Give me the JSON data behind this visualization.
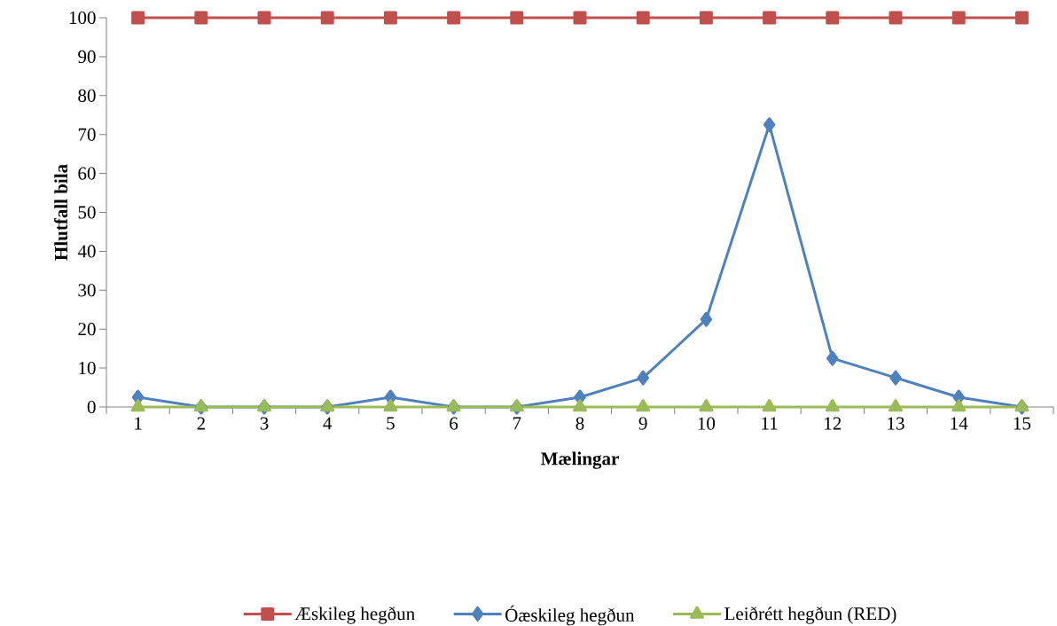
{
  "chart_data": {
    "type": "line",
    "xlabel": "Mælingar",
    "ylabel": "Hlutfall bila",
    "categories": [
      "1",
      "2",
      "3",
      "4",
      "5",
      "6",
      "7",
      "8",
      "9",
      "10",
      "11",
      "12",
      "13",
      "14",
      "15"
    ],
    "series": [
      {
        "name": "Æskileg hegðun",
        "color": "#c0504d",
        "marker": "square",
        "values": [
          100,
          100,
          100,
          100,
          100,
          100,
          100,
          100,
          100,
          100,
          100,
          100,
          100,
          100,
          100
        ]
      },
      {
        "name": "Óæskileg hegðun",
        "color": "#4f81bd",
        "marker": "diamond",
        "values": [
          2.5,
          0,
          0,
          0,
          2.5,
          0,
          0,
          2.5,
          7.5,
          22.5,
          72.5,
          12.5,
          7.5,
          2.5,
          0
        ]
      },
      {
        "name": "Leiðrétt hegðun (RED)",
        "color": "#9bbb59",
        "marker": "triangle",
        "values": [
          0,
          0,
          0,
          0,
          0,
          0,
          0,
          0,
          0,
          0,
          0,
          0,
          0,
          0,
          0
        ]
      }
    ],
    "ylim": [
      0,
      100
    ],
    "yticks": [
      0,
      10,
      20,
      30,
      40,
      50,
      60,
      70,
      80,
      90,
      100
    ],
    "grid": false,
    "legend": "bottom",
    "line_style": "solid"
  }
}
